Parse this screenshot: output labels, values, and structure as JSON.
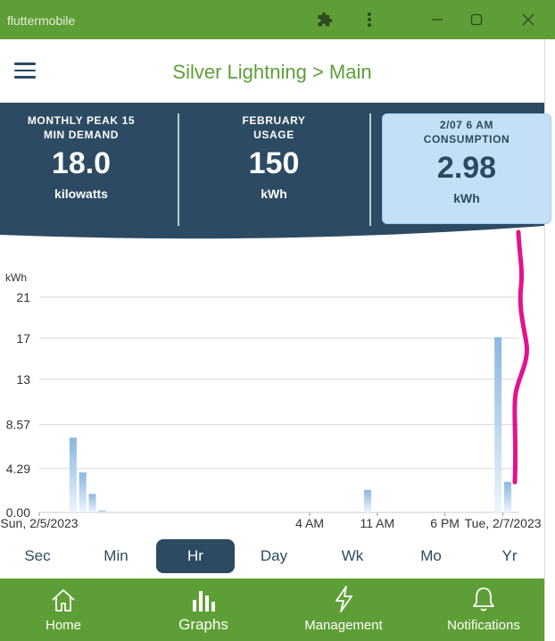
{
  "window": {
    "title": "fluttermobile"
  },
  "appbar": {
    "title": "Silver Lightning > Main"
  },
  "stats": [
    {
      "label": "MONTHLY PEAK 15\nMIN DEMAND",
      "value": "18.0",
      "unit": "kilowatts"
    },
    {
      "label": "FEBRUARY\nUSAGE",
      "value": "150",
      "unit": "kWh"
    },
    {
      "label": "2/07 6 AM\nCONSUMPTION",
      "value": "2.98",
      "unit": "kWh"
    }
  ],
  "chart_data": {
    "type": "bar",
    "ylabel": "kWh",
    "yticks": [
      "21",
      "17",
      "13",
      "8.57",
      "4.29",
      "0.00"
    ],
    "ylim": [
      0,
      21.43
    ],
    "xticks": [
      "Sun, 2/5/2023",
      "4 AM",
      "11 AM",
      "6 PM",
      "Tue, 2/7/2023"
    ],
    "x_hours_from_start": [
      0,
      28,
      35,
      42,
      48
    ],
    "x_max_hours": 49.7,
    "bars": [
      {
        "x": 3.5,
        "value": 7.3
      },
      {
        "x": 4.5,
        "value": 3.9
      },
      {
        "x": 5.5,
        "value": 1.8
      },
      {
        "x": 6.5,
        "value": 0.2
      },
      {
        "x": 34.0,
        "value": 2.2
      },
      {
        "x": 47.5,
        "value": 17.1
      },
      {
        "x": 48.5,
        "value": 2.98
      }
    ],
    "colors": {
      "bar_top": "#8ab6e2",
      "bar_bottom": "#eef5fc",
      "grid": "#d8d8d8"
    }
  },
  "intervals": [
    "Sec",
    "Min",
    "Hr",
    "Day",
    "Wk",
    "Mo",
    "Yr"
  ],
  "active_interval": "Hr",
  "nav": [
    {
      "label": "Home",
      "icon": "home-icon"
    },
    {
      "label": "Graphs",
      "icon": "bar-chart-icon"
    },
    {
      "label": "Management",
      "icon": "lightning-icon"
    },
    {
      "label": "Notifications",
      "icon": "bell-icon"
    }
  ],
  "colors": {
    "brand_green": "#5e9e36",
    "navy": "#2c4a62",
    "selected_card": "#c4e0f6",
    "annotation_stroke": "#e2138d"
  }
}
